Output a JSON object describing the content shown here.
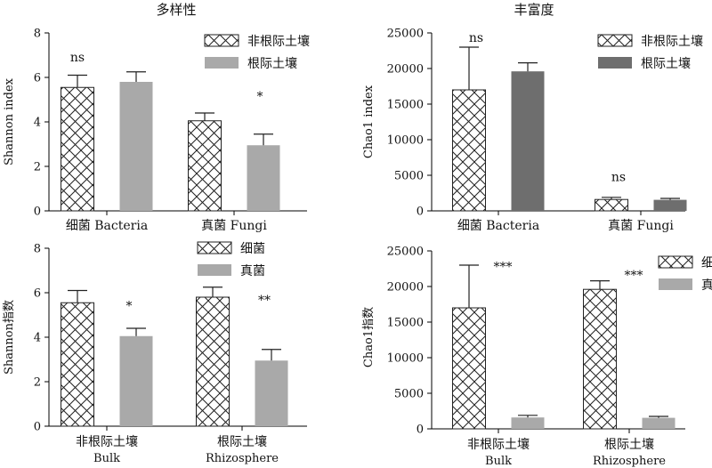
{
  "colors": {
    "hatch_fill": "#ffffff",
    "rhizo_bacteria": "#6e6e6e",
    "gray": "#a9a9a9",
    "axis": "#000000"
  },
  "chart_data": [
    {
      "id": "A",
      "type": "bar",
      "title": "多样性",
      "ylabel": "Shannon index",
      "ylim": [
        0,
        8
      ],
      "yticks": [
        0,
        2,
        4,
        6,
        8
      ],
      "grid": false,
      "legend_position": "top-right",
      "categories": [
        {
          "label": "细菌 Bacteria",
          "label_line2": ""
        },
        {
          "label": "真菌 Fungi",
          "label_line2": ""
        }
      ],
      "series": [
        {
          "name": "非根际土壤",
          "style": "hatch",
          "color": "#ffffff",
          "values": [
            5.55,
            4.05
          ],
          "errors": [
            0.55,
            0.35
          ]
        },
        {
          "name": "根际土壤",
          "style": "solid",
          "color": "#a9a9a9",
          "values": [
            5.8,
            2.95
          ],
          "errors": [
            0.45,
            0.5
          ]
        }
      ],
      "annotations": [
        {
          "category": 0,
          "text": "ns"
        },
        {
          "category": 1,
          "text": "*"
        }
      ]
    },
    {
      "id": "B",
      "type": "bar",
      "title": "丰富度",
      "ylabel": "Chao1 index",
      "ylim": [
        0,
        25000
      ],
      "yticks": [
        0,
        5000,
        10000,
        15000,
        20000,
        25000
      ],
      "grid": false,
      "legend_position": "top-right",
      "categories": [
        {
          "label": "细菌 Bacteria",
          "label_line2": ""
        },
        {
          "label": "真菌 Fungi",
          "label_line2": ""
        }
      ],
      "series": [
        {
          "name": "非根际土壤",
          "style": "hatch",
          "color": "#ffffff",
          "values": [
            17000,
            1600
          ],
          "errors": [
            6000,
            300
          ]
        },
        {
          "name": "根际土壤",
          "style": "solid",
          "color": "#6e6e6e",
          "values": [
            19600,
            1550
          ],
          "errors": [
            1200,
            200
          ]
        }
      ],
      "annotations": [
        {
          "category": 0,
          "text": "ns"
        },
        {
          "category": 1,
          "text": "ns"
        }
      ]
    },
    {
      "id": "C",
      "type": "bar",
      "title": "",
      "ylabel": "Shannon指数",
      "ylim": [
        0,
        8
      ],
      "yticks": [
        0,
        2,
        4,
        6,
        8
      ],
      "grid": false,
      "legend_position": "top-right",
      "categories": [
        {
          "label": "非根际土壤",
          "label_line2": "Bulk"
        },
        {
          "label": "根际土壤",
          "label_line2": "Rhizosphere"
        }
      ],
      "series": [
        {
          "name": "细菌",
          "style": "hatch",
          "color": "#ffffff",
          "values": [
            5.55,
            5.8
          ],
          "errors": [
            0.55,
            0.45
          ]
        },
        {
          "name": "真菌",
          "style": "solid",
          "color": "#a9a9a9",
          "values": [
            4.05,
            2.95
          ],
          "errors": [
            0.35,
            0.5
          ]
        }
      ],
      "annotations": [
        {
          "category": 0,
          "text": "*"
        },
        {
          "category": 1,
          "text": "**"
        }
      ]
    },
    {
      "id": "D",
      "type": "bar",
      "title": "",
      "ylabel": "Chao1指数",
      "ylim": [
        0,
        25000
      ],
      "yticks": [
        0,
        5000,
        10000,
        15000,
        20000,
        25000
      ],
      "grid": false,
      "legend_position": "top-right",
      "categories": [
        {
          "label": "非根际土壤",
          "label_line2": "Bulk"
        },
        {
          "label": "根际土壤",
          "label_line2": "Rhizosphere"
        }
      ],
      "series": [
        {
          "name": "细菌",
          "style": "hatch",
          "color": "#ffffff",
          "values": [
            17000,
            19600
          ],
          "errors": [
            6000,
            1200
          ]
        },
        {
          "name": "真菌",
          "style": "solid",
          "color": "#a9a9a9",
          "values": [
            1600,
            1550
          ],
          "errors": [
            300,
            200
          ]
        }
      ],
      "annotations": [
        {
          "category": 0,
          "text": "***"
        },
        {
          "category": 1,
          "text": "***"
        }
      ]
    }
  ]
}
